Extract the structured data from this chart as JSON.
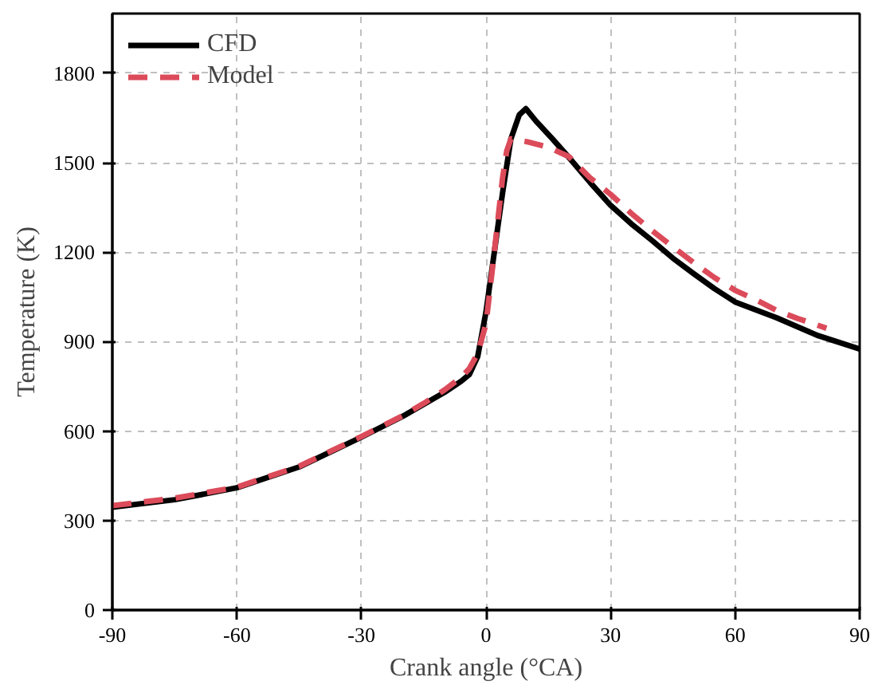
{
  "chart_data": {
    "type": "line",
    "xlabel": "Crank angle (°CA)",
    "ylabel": "Temperature (K)",
    "xlim": [
      -90,
      90
    ],
    "ylim": [
      0,
      2000
    ],
    "xticks": [
      -90,
      -60,
      -30,
      0,
      30,
      60,
      90
    ],
    "yticks": [
      0,
      300,
      600,
      900,
      1200,
      1500,
      1800
    ],
    "grid": true,
    "legend": "top left",
    "series": [
      {
        "name": "CFD",
        "color": "#000000",
        "line_style": "solid",
        "x": [
          -90,
          -75,
          -60,
          -45,
          -30,
          -20,
          -15,
          -10,
          -6,
          -4,
          -2,
          0,
          2,
          4,
          6,
          8,
          9.6,
          12,
          16,
          20,
          25,
          30,
          35,
          40,
          45,
          50,
          55,
          60,
          70,
          75,
          80,
          90
        ],
        "values": [
          345,
          370,
          410,
          480,
          580,
          650,
          690,
          730,
          767,
          790,
          850,
          1000,
          1200,
          1400,
          1580,
          1660,
          1681,
          1640,
          1580,
          1517,
          1435,
          1357,
          1295,
          1239,
          1180,
          1128,
          1078,
          1033,
          980,
          950,
          920,
          875
        ]
      },
      {
        "name": "Model",
        "color": "#dc4b5a",
        "line_style": "dashed",
        "x": [
          -90,
          -75,
          -60,
          -45,
          -30,
          -20,
          -15,
          -10,
          -6,
          -4,
          -2,
          0,
          2,
          4,
          5,
          6,
          10,
          15,
          20,
          25,
          30,
          35,
          40,
          45,
          50,
          55,
          60,
          65,
          70,
          75,
          82
        ],
        "values": [
          350,
          375,
          412,
          482,
          582,
          652,
          693,
          738,
          780,
          810,
          860,
          960,
          1200,
          1450,
          1540,
          1580,
          1570,
          1552,
          1520,
          1450,
          1394,
          1330,
          1272,
          1218,
          1165,
          1115,
          1072,
          1040,
          1005,
          978,
          945
        ]
      }
    ]
  }
}
